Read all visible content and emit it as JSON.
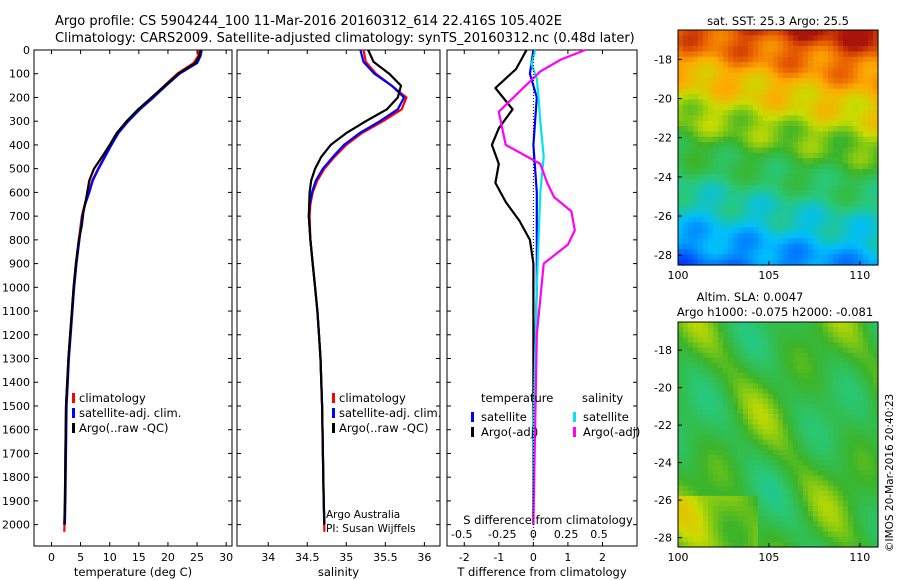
{
  "title_lines": [
    "Argo profile: CS 5904244_100 11-Mar-2016 20160312_614 22.416S 105.402E",
    "Climatology: CARS2009. Satellite-adjusted climatology: synTS_20160312.nc (0.48d later)"
  ],
  "credits": {
    "argo_line1": "Argo Australia",
    "argo_line2": "PI: Susan Wijffels",
    "imos_stamp": "©IMOS 20-Mar-2016 20:40:23"
  },
  "colors": {
    "climatology": "#ff0000",
    "satellite": "#0000ff",
    "argo": "#000000",
    "salinity_satellite": "#00e5ee",
    "salinity_argo": "#ff00ff"
  },
  "chart_data": [
    {
      "type": "line",
      "xlabel": "temperature (deg C)",
      "xlim": [
        -3,
        31
      ],
      "xticks": [
        0,
        5,
        10,
        15,
        20,
        25,
        30
      ],
      "ylim": [
        2090,
        0
      ],
      "yticks": [
        0,
        100,
        200,
        300,
        400,
        500,
        600,
        700,
        800,
        900,
        1000,
        1100,
        1200,
        1300,
        1400,
        1500,
        1600,
        1700,
        1800,
        1900,
        2000
      ],
      "legend": [
        "climatology",
        "satellite-adj. clim.",
        "Argo(..raw -QC)"
      ],
      "series": [
        {
          "name": "climatology",
          "color": "#ff0000",
          "x": [
            25.3,
            25.2,
            24.4,
            21.6,
            19.4,
            17.3,
            15.0,
            13.0,
            11.3,
            10.2,
            9.1,
            8.0,
            7.0,
            6.4,
            5.7,
            5.2,
            4.7,
            4.2,
            3.8,
            3.5,
            3.2,
            2.9,
            2.7,
            2.5,
            2.4,
            2.3,
            2.2
          ],
          "y": [
            0,
            25,
            55,
            100,
            150,
            200,
            250,
            300,
            350,
            400,
            450,
            500,
            550,
            600,
            650,
            700,
            800,
            900,
            1000,
            1100,
            1200,
            1300,
            1400,
            1500,
            1700,
            1900,
            2030
          ]
        },
        {
          "name": "satellite-adj. clim.",
          "color": "#0000ff",
          "x": [
            25.8,
            25.6,
            25.0,
            22.0,
            19.7,
            17.5,
            15.2,
            13.2,
            11.5,
            10.3,
            9.2,
            8.1,
            7.1,
            6.5,
            5.8,
            5.3,
            4.8,
            4.3,
            3.9,
            3.6,
            3.3,
            3.0,
            2.8,
            2.6,
            2.5,
            2.4,
            2.3
          ],
          "y": [
            0,
            25,
            55,
            100,
            150,
            200,
            250,
            300,
            350,
            400,
            450,
            500,
            550,
            600,
            650,
            700,
            800,
            900,
            1000,
            1100,
            1200,
            1300,
            1400,
            1500,
            1700,
            1900,
            2000
          ]
        },
        {
          "name": "Argo(..raw -QC)",
          "color": "#000000",
          "x": [
            25.6,
            25.4,
            24.7,
            21.8,
            19.5,
            17.2,
            14.9,
            12.9,
            11.2,
            10.0,
            8.7,
            7.3,
            6.5,
            6.0,
            5.5,
            5.2,
            4.7,
            4.2,
            3.8,
            3.5,
            3.2,
            2.9,
            2.7,
            2.5,
            2.4,
            2.3,
            2.2
          ],
          "y": [
            0,
            25,
            55,
            100,
            150,
            200,
            250,
            300,
            350,
            400,
            450,
            500,
            550,
            620,
            680,
            740,
            800,
            900,
            1000,
            1100,
            1200,
            1300,
            1400,
            1500,
            1700,
            1900,
            2000
          ]
        }
      ]
    },
    {
      "type": "line",
      "xlabel": "salinity",
      "xlim": [
        33.6,
        36.2
      ],
      "xticks": [
        34,
        34.5,
        35,
        35.5,
        36
      ],
      "ylim": [
        2090,
        0
      ],
      "legend": [
        "climatology",
        "satellite-adj. clim.",
        "Argo(..raw -QC)"
      ],
      "series": [
        {
          "name": "climatology",
          "color": "#ff0000",
          "x": [
            35.22,
            35.25,
            35.38,
            35.58,
            35.77,
            35.71,
            35.47,
            35.2,
            35.0,
            34.85,
            34.72,
            34.63,
            34.57,
            34.54,
            34.53,
            34.54,
            34.57,
            34.6,
            34.63,
            34.65,
            34.67,
            34.68,
            34.69,
            34.7,
            34.71,
            34.72
          ],
          "y": [
            0,
            50,
            100,
            150,
            200,
            250,
            300,
            350,
            400,
            450,
            500,
            550,
            600,
            650,
            700,
            800,
            900,
            1000,
            1100,
            1200,
            1300,
            1400,
            1500,
            1700,
            1900,
            2030
          ]
        },
        {
          "name": "satellite-adj. clim.",
          "color": "#0000ff",
          "x": [
            35.18,
            35.22,
            35.36,
            35.58,
            35.74,
            35.66,
            35.43,
            35.17,
            34.97,
            34.83,
            34.7,
            34.61,
            34.56,
            34.53,
            34.52,
            34.54,
            34.57,
            34.6,
            34.63,
            34.65,
            34.67,
            34.68,
            34.69,
            34.7,
            34.71,
            34.72
          ],
          "y": [
            0,
            50,
            100,
            150,
            200,
            250,
            300,
            350,
            400,
            450,
            500,
            550,
            600,
            650,
            700,
            800,
            900,
            1000,
            1100,
            1200,
            1300,
            1400,
            1500,
            1700,
            1900,
            2000
          ]
        },
        {
          "name": "Argo(..raw -QC)",
          "color": "#000000",
          "x": [
            35.28,
            35.35,
            35.55,
            35.7,
            35.66,
            35.52,
            35.25,
            35.0,
            34.8,
            34.68,
            34.6,
            34.55,
            34.53,
            34.52,
            34.54,
            34.57,
            34.6,
            34.63,
            34.65,
            34.67,
            34.68,
            34.69,
            34.7,
            34.71,
            34.72
          ],
          "y": [
            0,
            50,
            100,
            150,
            200,
            250,
            300,
            350,
            400,
            450,
            500,
            550,
            600,
            700,
            800,
            900,
            1000,
            1100,
            1200,
            1300,
            1400,
            1500,
            1700,
            1900,
            2000
          ]
        }
      ]
    },
    {
      "type": "line",
      "xlabel": "T difference from climatology",
      "xlabel_top": "S difference from climatology",
      "xlim": [
        -2.5,
        3.0
      ],
      "xticks": [
        -2,
        -1,
        0,
        1,
        2
      ],
      "xticks_top": [
        "-0.5",
        "-0.25",
        "0",
        "0.25",
        "0.5"
      ],
      "ylim": [
        2090,
        0
      ],
      "legend_titles": [
        "temperature",
        "salinity"
      ],
      "legend": [
        "satellite",
        "Argo(-adj)",
        "satellite",
        "Argo(-adj)"
      ],
      "series": [
        {
          "name": "satellite",
          "group": "temperature",
          "color": "#0000ff",
          "x": [
            0.0,
            -0.1,
            0.1,
            0.05,
            0.0,
            0.05,
            0.1,
            0.1,
            0.1,
            0.05,
            0.0,
            0.0
          ],
          "y": [
            0,
            100,
            200,
            300,
            400,
            500,
            600,
            800,
            1000,
            1300,
            1600,
            2000
          ]
        },
        {
          "name": "Argo(-adj)",
          "group": "temperature",
          "color": "#000000",
          "x": [
            -0.2,
            -0.5,
            -1.1,
            -0.6,
            -1.0,
            -1.2,
            -1.0,
            -1.1,
            -0.8,
            -0.4,
            -0.1,
            0.0,
            0.0,
            0.0,
            0.0
          ],
          "y": [
            0,
            80,
            160,
            250,
            330,
            400,
            480,
            560,
            640,
            720,
            800,
            900,
            1200,
            1600,
            2000
          ]
        },
        {
          "name": "satellite",
          "group": "salinity",
          "color": "#00e5ee",
          "x": [
            0.05,
            -0.05,
            0.1,
            0.15,
            0.2,
            0.3,
            0.2,
            0.15,
            0.1,
            0.05,
            0.0,
            0.0
          ],
          "y": [
            0,
            60,
            120,
            200,
            300,
            450,
            600,
            800,
            1000,
            1300,
            1600,
            2000
          ]
        },
        {
          "name": "Argo(-adj)",
          "group": "salinity",
          "color": "#ff00ff",
          "x": [
            1.5,
            0.8,
            0.2,
            -1.0,
            -0.8,
            0.2,
            0.4,
            0.6,
            1.1,
            1.2,
            1.0,
            0.3,
            0.1,
            0.0
          ],
          "y": [
            0,
            40,
            90,
            260,
            400,
            480,
            560,
            620,
            680,
            760,
            820,
            900,
            1200,
            2000
          ]
        }
      ]
    },
    {
      "type": "heatmap",
      "title": "sat. SST: 25.3 Argo: 25.5",
      "xlim": [
        100,
        111
      ],
      "ylim": [
        -28.5,
        -16.5
      ],
      "xticks": [
        100,
        105,
        110
      ],
      "yticks": [
        -18,
        -20,
        -22,
        -24,
        -26,
        -28
      ],
      "x_tick_labels_shown": false
    },
    {
      "type": "heatmap",
      "title_lines": [
        "Altim. SLA: 0.0047",
        "Argo h1000: -0.075 h2000: -0.081"
      ],
      "xlim": [
        100,
        111
      ],
      "ylim": [
        -28.5,
        -16.5
      ],
      "xticks": [
        100,
        105,
        110
      ],
      "yticks": [
        -18,
        -20,
        -22,
        -24,
        -26,
        -28
      ]
    }
  ]
}
